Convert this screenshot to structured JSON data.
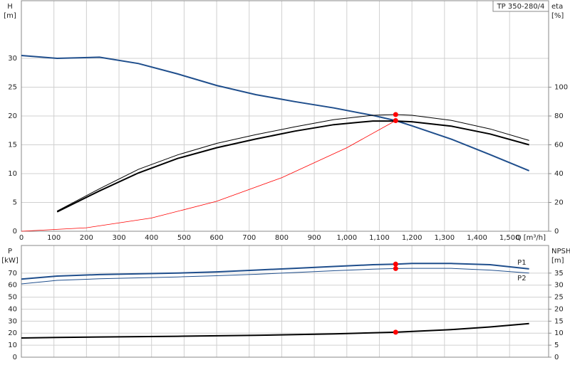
{
  "chart_data": [
    {
      "type": "line",
      "title": "TP 350-280/4",
      "ylabel": "H",
      "yunit": "[m]",
      "y2label": "eta",
      "y2unit": "[%]",
      "xlabel": "Q [m³/h]",
      "xlim": [
        0,
        1620
      ],
      "ylim": [
        0,
        40
      ],
      "y2lim": [
        0,
        160
      ],
      "grid": true,
      "xticks": [
        0,
        100,
        200,
        300,
        400,
        500,
        600,
        700,
        800,
        900,
        {
          "value": 1000,
          "label": "1,000"
        },
        {
          "value": 1100,
          "label": "1,100"
        },
        {
          "value": 1200,
          "label": "1,200"
        },
        {
          "value": 1300,
          "label": "1,300"
        },
        {
          "value": 1400,
          "label": "1,400"
        },
        {
          "value": 1500,
          "label": "1,500"
        }
      ],
      "yticks": [
        0,
        5,
        10,
        15,
        20,
        25,
        30
      ],
      "y2ticks": [
        0,
        20,
        40,
        60,
        80,
        100
      ],
      "series": [
        {
          "color": "#1f4e8c",
          "width": 2,
          "x": [
            0,
            110,
            240,
            360,
            480,
            600,
            720,
            840,
            960,
            1080,
            1150,
            1200,
            1320,
            1440,
            1560
          ],
          "values": [
            30.5,
            30,
            30.2,
            29.1,
            27.3,
            25.3,
            23.7,
            22.5,
            21.4,
            20.1,
            19.2,
            18.3,
            16,
            13.3,
            10.5
          ]
        },
        {
          "color": "#000000",
          "width": 2,
          "axis": "y2",
          "x": [
            110,
            240,
            360,
            480,
            600,
            720,
            840,
            960,
            1080,
            1150,
            1200,
            1320,
            1440,
            1560
          ],
          "values": [
            13.5,
            28,
            40.5,
            50.5,
            58,
            64,
            69.5,
            74,
            76.5,
            76.5,
            76,
            73,
            67.5,
            60
          ]
        },
        {
          "color": "#000000",
          "width": 1,
          "axis": "y2",
          "x": [
            110,
            240,
            360,
            480,
            600,
            720,
            840,
            960,
            1080,
            1150,
            1200,
            1320,
            1440,
            1560
          ],
          "values": [
            14,
            29.5,
            43,
            53,
            61,
            67,
            72.5,
            77.5,
            80.5,
            81,
            80.5,
            77,
            71,
            63
          ]
        },
        {
          "color": "#ff0000",
          "width": 0.8,
          "x": [
            0,
            200,
            400,
            600,
            800,
            1000,
            1150
          ],
          "values": [
            0,
            0.6,
            2.3,
            5.2,
            9.3,
            14.5,
            19.2
          ]
        }
      ],
      "points": [
        {
          "x": 1150,
          "y": 81,
          "axis": "y2",
          "color": "#ff0000"
        },
        {
          "x": 1150,
          "y": 19.2,
          "color": "#ff0000"
        }
      ]
    },
    {
      "type": "line",
      "ylabel": "P",
      "yunit": "[kW]",
      "y2label": "NPSH",
      "y2unit": "[m]",
      "xlim": [
        0,
        1620
      ],
      "ylim": [
        0,
        93
      ],
      "y2lim": [
        0,
        46.5
      ],
      "grid": true,
      "xtick_labels": false,
      "xticks": [
        0,
        100,
        200,
        300,
        400,
        500,
        600,
        700,
        800,
        900,
        1000,
        1100,
        1200,
        1300,
        1400,
        1500
      ],
      "yticks": [
        0,
        10,
        20,
        30,
        40,
        50,
        60,
        70
      ],
      "y2ticks": [
        0,
        5,
        10,
        15,
        20,
        25,
        30,
        35
      ],
      "series": [
        {
          "name": "P1",
          "color": "#1f4e8c",
          "width": 2,
          "x": [
            0,
            110,
            240,
            480,
            600,
            720,
            840,
            960,
            1080,
            1150,
            1200,
            1320,
            1440,
            1560
          ],
          "values": [
            65,
            67.5,
            68.8,
            70,
            71,
            72.5,
            74,
            75.5,
            77,
            77.5,
            78,
            78,
            77,
            73.5
          ]
        },
        {
          "name": "P2",
          "color": "#1f4e8c",
          "width": 1,
          "x": [
            0,
            110,
            240,
            480,
            600,
            720,
            840,
            960,
            1080,
            1150,
            1200,
            1320,
            1440,
            1560
          ],
          "values": [
            61,
            64,
            65.3,
            66.8,
            67.8,
            69,
            70.5,
            72,
            73.3,
            73.8,
            74,
            74,
            72.5,
            70
          ]
        },
        {
          "color": "#000000",
          "width": 2,
          "axis": "y2",
          "x": [
            0,
            110,
            240,
            480,
            720,
            960,
            1150,
            1320,
            1440,
            1560
          ],
          "values": [
            8,
            8.2,
            8.4,
            8.7,
            9.1,
            9.7,
            10.4,
            11.5,
            12.6,
            14
          ]
        }
      ],
      "points": [
        {
          "x": 1150,
          "y": 77.5,
          "color": "#ff0000"
        },
        {
          "x": 1150,
          "y": 73.8,
          "color": "#ff0000"
        },
        {
          "x": 1150,
          "y": 10.4,
          "axis": "y2",
          "color": "#ff0000"
        }
      ]
    }
  ]
}
